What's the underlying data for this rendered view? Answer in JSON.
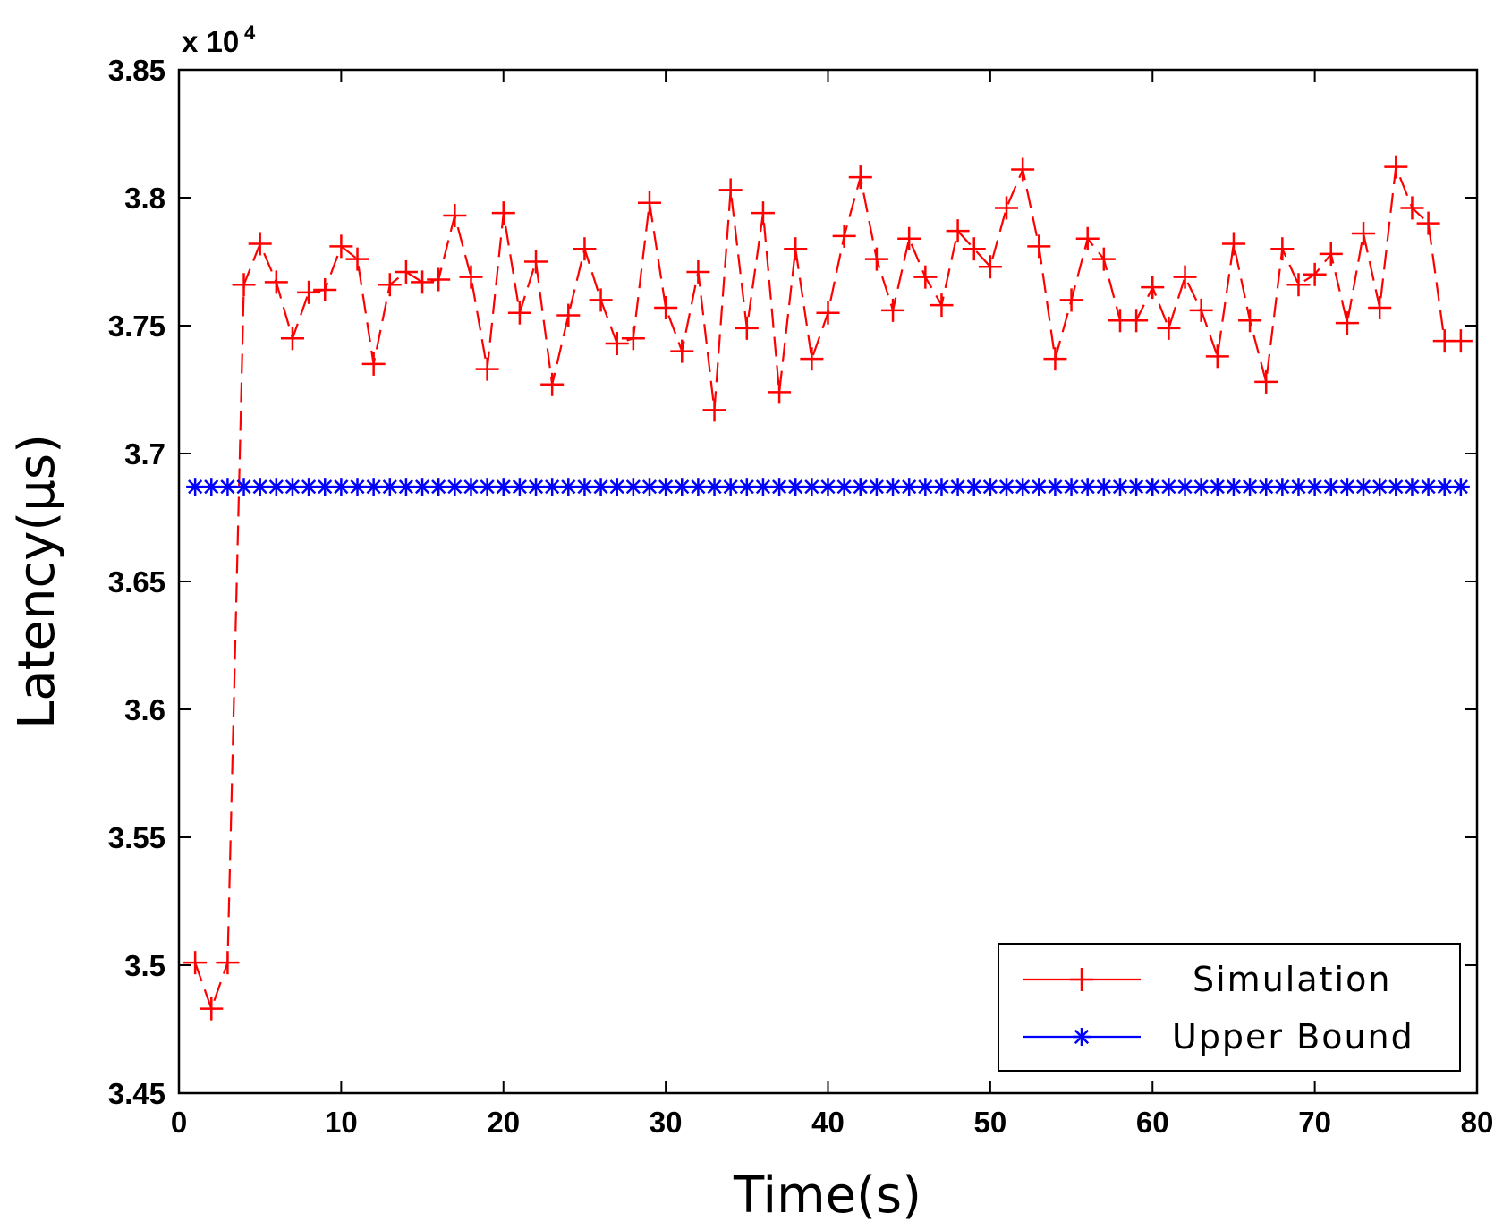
{
  "chart_data": {
    "type": "line",
    "title": "",
    "xlabel": "Time(s)",
    "ylabel": "Latency(μs)",
    "y_multiplier_label": "x 10",
    "y_multiplier_exponent": "4",
    "xlim": [
      0,
      80
    ],
    "ylim": [
      3.45,
      3.85
    ],
    "x_ticks": [
      0,
      10,
      20,
      30,
      40,
      50,
      60,
      70,
      80
    ],
    "x_tick_labels": [
      "0",
      "10",
      "20",
      "30",
      "40",
      "50",
      "60",
      "70",
      "80"
    ],
    "y_ticks": [
      3.45,
      3.5,
      3.55,
      3.6,
      3.65,
      3.7,
      3.75,
      3.8,
      3.85
    ],
    "y_tick_labels": [
      "3.45",
      "3.5",
      "3.55",
      "3.6",
      "3.65",
      "3.7",
      "3.75",
      "3.8",
      "3.85"
    ],
    "grid": false,
    "legend_position": "bottom-right",
    "series": [
      {
        "name": "Simulation",
        "color": "#ff0000",
        "line_style": "dashed",
        "marker": "plus",
        "x": [
          1,
          2,
          3,
          4,
          5,
          6,
          7,
          8,
          9,
          10,
          11,
          12,
          13,
          14,
          15,
          16,
          17,
          18,
          19,
          20,
          21,
          22,
          23,
          24,
          25,
          26,
          27,
          28,
          29,
          30,
          31,
          32,
          33,
          34,
          35,
          36,
          37,
          38,
          39,
          40,
          41,
          42,
          43,
          44,
          45,
          46,
          47,
          48,
          49,
          50,
          51,
          52,
          53,
          54,
          55,
          56,
          57,
          58,
          59,
          60,
          61,
          62,
          63,
          64,
          65,
          66,
          67,
          68,
          69,
          70,
          71,
          72,
          73,
          74,
          75,
          76,
          77,
          78,
          79
        ],
        "values": [
          3.501,
          3.483,
          3.501,
          3.766,
          3.782,
          3.767,
          3.745,
          3.763,
          3.764,
          3.781,
          3.776,
          3.735,
          3.766,
          3.771,
          3.767,
          3.768,
          3.793,
          3.769,
          3.733,
          3.794,
          3.755,
          3.775,
          3.727,
          3.754,
          3.78,
          3.76,
          3.743,
          3.745,
          3.798,
          3.757,
          3.74,
          3.771,
          3.717,
          3.803,
          3.749,
          3.794,
          3.724,
          3.78,
          3.737,
          3.755,
          3.785,
          3.808,
          3.776,
          3.756,
          3.784,
          3.769,
          3.758,
          3.787,
          3.78,
          3.773,
          3.796,
          3.811,
          3.781,
          3.737,
          3.76,
          3.784,
          3.776,
          3.752,
          3.752,
          3.765,
          3.749,
          3.769,
          3.756,
          3.738,
          3.782,
          3.752,
          3.728,
          3.78,
          3.766,
          3.77,
          3.778,
          3.751,
          3.786,
          3.757,
          3.812,
          3.796,
          3.79,
          3.744,
          3.744
        ]
      },
      {
        "name": "Upper Bound",
        "color": "#0000ff",
        "line_style": "solid",
        "marker": "asterisk",
        "x": [
          1,
          2,
          3,
          4,
          5,
          6,
          7,
          8,
          9,
          10,
          11,
          12,
          13,
          14,
          15,
          16,
          17,
          18,
          19,
          20,
          21,
          22,
          23,
          24,
          25,
          26,
          27,
          28,
          29,
          30,
          31,
          32,
          33,
          34,
          35,
          36,
          37,
          38,
          39,
          40,
          41,
          42,
          43,
          44,
          45,
          46,
          47,
          48,
          49,
          50,
          51,
          52,
          53,
          54,
          55,
          56,
          57,
          58,
          59,
          60,
          61,
          62,
          63,
          64,
          65,
          66,
          67,
          68,
          69,
          70,
          71,
          72,
          73,
          74,
          75,
          76,
          77,
          78,
          79
        ],
        "values": [
          3.687,
          3.687,
          3.687,
          3.687,
          3.687,
          3.687,
          3.687,
          3.687,
          3.687,
          3.687,
          3.687,
          3.687,
          3.687,
          3.687,
          3.687,
          3.687,
          3.687,
          3.687,
          3.687,
          3.687,
          3.687,
          3.687,
          3.687,
          3.687,
          3.687,
          3.687,
          3.687,
          3.687,
          3.687,
          3.687,
          3.687,
          3.687,
          3.687,
          3.687,
          3.687,
          3.687,
          3.687,
          3.687,
          3.687,
          3.687,
          3.687,
          3.687,
          3.687,
          3.687,
          3.687,
          3.687,
          3.687,
          3.687,
          3.687,
          3.687,
          3.687,
          3.687,
          3.687,
          3.687,
          3.687,
          3.687,
          3.687,
          3.687,
          3.687,
          3.687,
          3.687,
          3.687,
          3.687,
          3.687,
          3.687,
          3.687,
          3.687,
          3.687,
          3.687,
          3.687,
          3.687,
          3.687,
          3.687,
          3.687,
          3.687,
          3.687,
          3.687,
          3.687,
          3.687
        ]
      }
    ]
  }
}
